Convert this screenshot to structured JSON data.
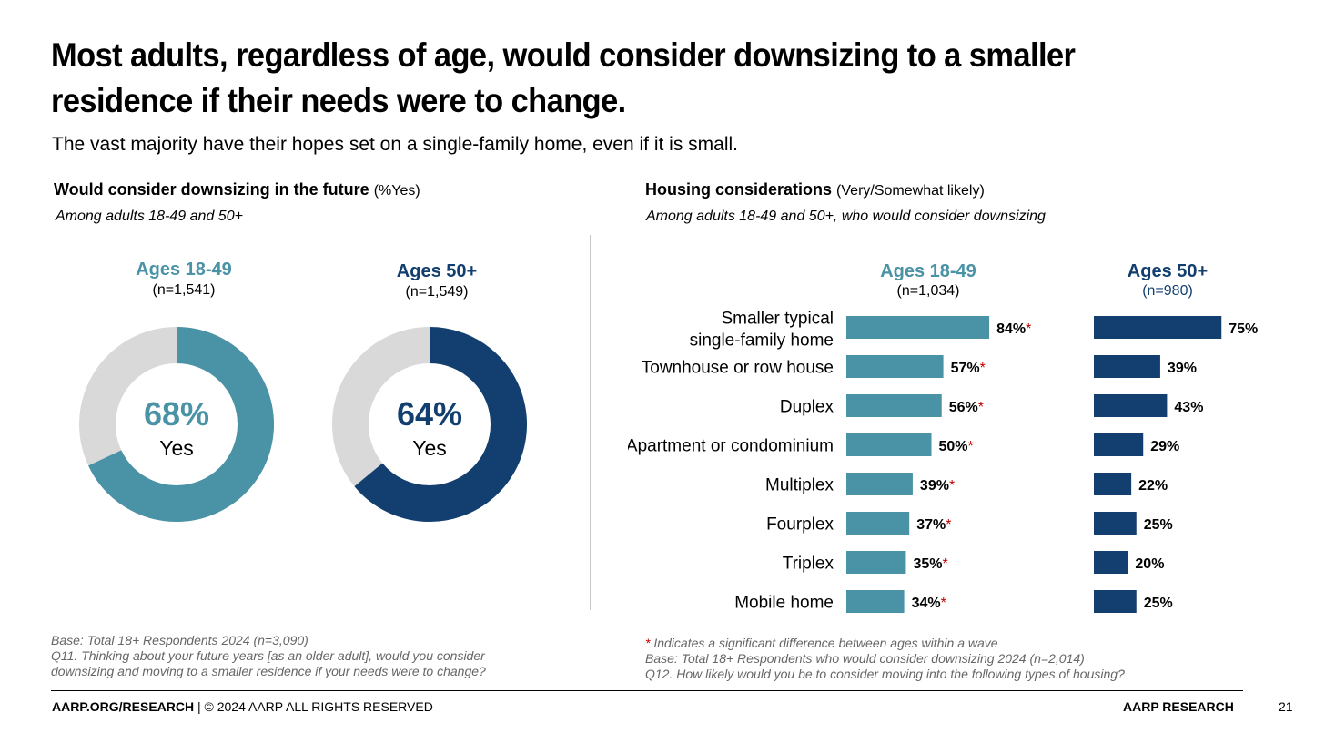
{
  "title": "Most adults, regardless of age, would consider downsizing to a smaller residence if their needs were to change.",
  "subtitle": "The vast majority have their hopes set on a single-family home, even if it is small.",
  "left_section": {
    "title": "Would consider downsizing in the future",
    "title_paren": "(%Yes)",
    "subtitle": "Among adults 18-49 and 50+"
  },
  "right_section": {
    "title": "Housing considerations",
    "title_paren": "(Very/Somewhat likely)",
    "subtitle": "Among adults 18-49 and 50+, who would consider downsizing"
  },
  "colors": {
    "teal": "#4a92a6",
    "navy": "#123f6f",
    "gray": "#d9d9d9",
    "star": "#c00000"
  },
  "chart_data": [
    {
      "type": "pie",
      "subtype": "donut",
      "title": "Ages 18-49",
      "n": "(n=1,541)",
      "value": 68,
      "center_value": "68%",
      "center_label": "Yes",
      "color": "#4a92a6"
    },
    {
      "type": "pie",
      "subtype": "donut",
      "title": "Ages 50+",
      "n": "(n=1,549)",
      "value": 64,
      "center_value": "64%",
      "center_label": "Yes",
      "color": "#123f6f"
    },
    {
      "type": "bar",
      "orientation": "horizontal",
      "categories": [
        "Smaller typical single-family home",
        "Townhouse or row house",
        "Duplex",
        "Apartment or condominium",
        "Multiplex",
        "Fourplex",
        "Triplex",
        "Mobile home"
      ],
      "series": [
        {
          "name": "Ages 18-49",
          "n": "(n=1,034)",
          "color": "#4a92a6",
          "values": [
            84,
            57,
            56,
            50,
            39,
            37,
            35,
            34
          ],
          "labels": [
            "84%",
            "57%",
            "56%",
            "50%",
            "39%",
            "37%",
            "35%",
            "34%"
          ],
          "significant": [
            true,
            true,
            true,
            true,
            true,
            true,
            true,
            true
          ]
        },
        {
          "name": "Ages 50+",
          "n": "(n=980)",
          "color": "#123f6f",
          "values": [
            75,
            39,
            43,
            29,
            22,
            25,
            20,
            25
          ],
          "labels": [
            "75%",
            "39%",
            "43%",
            "29%",
            "22%",
            "25%",
            "20%",
            "25%"
          ]
        }
      ]
    }
  ],
  "notes_left": {
    "base": "Base: Total 18+ Respondents 2024 (n=3,090)",
    "q1": "Q11. Thinking about your future years [as an older adult], would you consider",
    "q2": "downsizing and moving to a smaller residence if your needs were to change?"
  },
  "notes_right": {
    "sig": "Indicates a significant difference between ages within a wave",
    "base": "Base: Total 18+ Respondents who would consider downsizing 2024 (n=2,014)",
    "q": "Q12. How likely would you be to consider moving into the following types of housing?"
  },
  "footer": {
    "left_bold": "AARP.ORG/RESEARCH",
    "left_rest": " | © 2024 AARP ALL RIGHTS RESERVED",
    "right": "AARP RESEARCH",
    "page": "21"
  }
}
